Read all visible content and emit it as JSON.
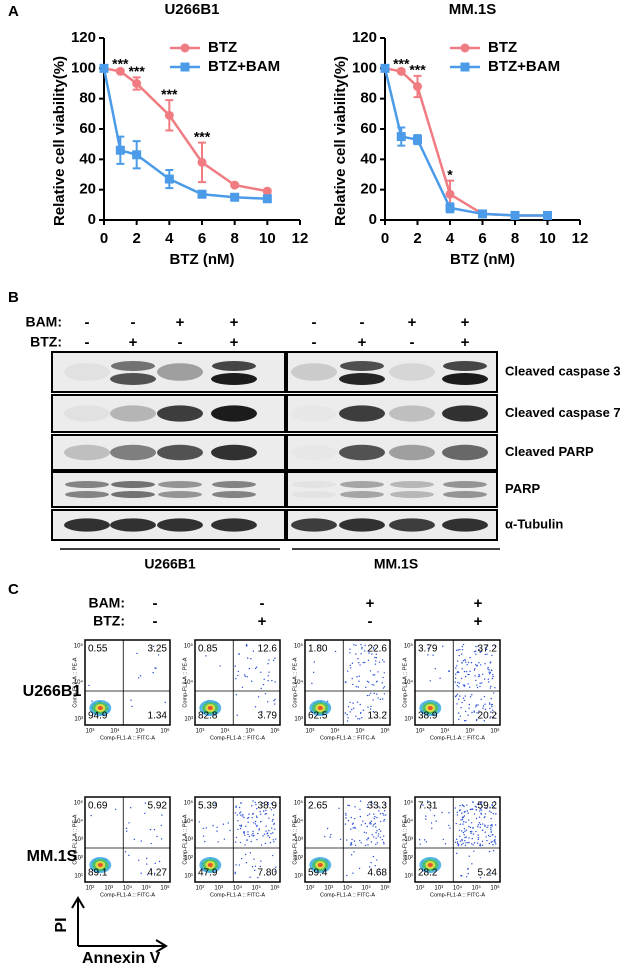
{
  "panel_labels": [
    "A",
    "B",
    "C"
  ],
  "chart_data": [
    {
      "type": "line",
      "title": "U266B1",
      "xlabel": "BTZ (nM)",
      "ylabel": "Relative cell viability(%)",
      "x": [
        0,
        1,
        2,
        4,
        6,
        8,
        10
      ],
      "xlim": [
        0,
        12
      ],
      "xticks": [
        0,
        2,
        4,
        6,
        8,
        10,
        12
      ],
      "ylim": [
        0,
        120
      ],
      "yticks": [
        0,
        20,
        40,
        60,
        80,
        100,
        120
      ],
      "legend": "upper right",
      "series": [
        {
          "name": "BTZ",
          "color": "#f07c82",
          "marker": "circle",
          "values": [
            100,
            98,
            90,
            69,
            38,
            23,
            19
          ],
          "errors": [
            0,
            1,
            4,
            10,
            13,
            1,
            1
          ]
        },
        {
          "name": "BTZ+BAM",
          "color": "#4c9be8",
          "marker": "square",
          "values": [
            100,
            46,
            43,
            27,
            17,
            15,
            14
          ],
          "errors": [
            0,
            9,
            9,
            6,
            1,
            1,
            1
          ]
        }
      ],
      "annotations": [
        {
          "text": "***",
          "x": 1
        },
        {
          "text": "***",
          "x": 2
        },
        {
          "text": "***",
          "x": 4
        },
        {
          "text": "***",
          "x": 6
        }
      ]
    },
    {
      "type": "line",
      "title": "MM.1S",
      "xlabel": "BTZ (nM)",
      "ylabel": "Relative cell viability(%)",
      "x": [
        0,
        1,
        2,
        4,
        6,
        8,
        10
      ],
      "xlim": [
        0,
        12
      ],
      "xticks": [
        0,
        2,
        4,
        6,
        8,
        10,
        12
      ],
      "ylim": [
        0,
        120
      ],
      "yticks": [
        0,
        20,
        40,
        60,
        80,
        100,
        120
      ],
      "legend": "upper right",
      "series": [
        {
          "name": "BTZ",
          "color": "#f07c82",
          "marker": "circle",
          "values": [
            100,
            98,
            88,
            17,
            4,
            3,
            3
          ],
          "errors": [
            0,
            1,
            7,
            9,
            1,
            1,
            1
          ]
        },
        {
          "name": "BTZ+BAM",
          "color": "#4c9be8",
          "marker": "square",
          "values": [
            100,
            55,
            53,
            8,
            4,
            3,
            3
          ],
          "errors": [
            0,
            6,
            3,
            3,
            1,
            1,
            1
          ]
        }
      ],
      "annotations": [
        {
          "text": "***",
          "x": 1
        },
        {
          "text": "***",
          "x": 2
        },
        {
          "text": "*",
          "x": 4
        }
      ]
    }
  ],
  "blot": {
    "treatments": [
      {
        "name": "BAM:",
        "signs": [
          "-",
          "-",
          "+",
          "+"
        ]
      },
      {
        "name": "BTZ:",
        "signs": [
          "-",
          "+",
          "-",
          "+"
        ]
      }
    ],
    "bands": [
      "Cleaved caspase 3",
      "Cleaved caspase 7",
      "Cleaved PARP",
      "PARP",
      "α-Tubulin"
    ],
    "cell_lines": [
      "U266B1",
      "MM.1S"
    ]
  },
  "flow": {
    "treatments": [
      {
        "name": "BAM:",
        "signs": [
          "-",
          "-",
          "+",
          "+"
        ]
      },
      {
        "name": "BTZ:",
        "signs": [
          "-",
          "+",
          "-",
          "+"
        ]
      }
    ],
    "y_axis_label": "Comp-FL2-A :: PE-A",
    "x_axis_label": "Comp-FL1-A :: FITC-A",
    "rows": [
      {
        "cell_line": "U266B1",
        "xticks": [
          "10³",
          "10⁴",
          "10⁵",
          "10⁶"
        ],
        "yticks": [
          "10³",
          "10⁴",
          "10⁵"
        ],
        "plots": [
          [
            "0.55",
            "3.25",
            "94.9",
            "1.34"
          ],
          [
            "0.85",
            "12.6",
            "82.8",
            "3.79"
          ],
          [
            "1.80",
            "22.6",
            "62.5",
            "13.2"
          ],
          [
            "3.79",
            "37.2",
            "38.9",
            "20.2"
          ]
        ]
      },
      {
        "cell_line": "MM.1S",
        "xticks": [
          "10²",
          "10³",
          "10⁴",
          "10⁵",
          "10⁶"
        ],
        "yticks": [
          "10¹",
          "10²",
          "10³",
          "10⁴",
          "10⁵"
        ],
        "plots": [
          [
            "0.69",
            "5.92",
            "89.1",
            "4.27"
          ],
          [
            "5.39",
            "38.9",
            "47.9",
            "7.80"
          ],
          [
            "2.65",
            "33.3",
            "59.4",
            "4.68"
          ],
          [
            "7.31",
            "59.2",
            "28.2",
            "5.24"
          ]
        ]
      }
    ],
    "y_stain": "PI",
    "x_stain": "Annexin V"
  }
}
